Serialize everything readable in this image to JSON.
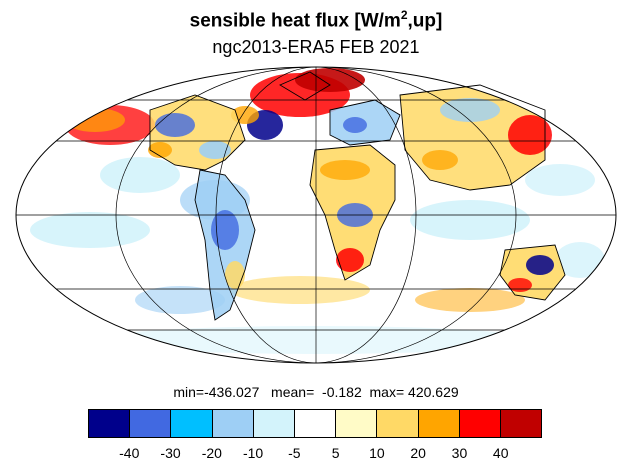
{
  "title": {
    "main": "sensible heat flux [W/m",
    "superscript": "2",
    "suffix": ",up]"
  },
  "subtitle": "ngc2013-ERA5  FEB 2021",
  "stats": {
    "min": "-436.027",
    "mean": "-0.182",
    "max": "420.629"
  },
  "projection": "mollweide",
  "graticule": {
    "meridian_step_deg": 60,
    "parallel_step_deg": 30
  },
  "colorbar": {
    "colors": [
      "#00008b",
      "#4169e1",
      "#00bfff",
      "#9ecff5",
      "#d3f3fb",
      "#ffffff",
      "#fffbc7",
      "#ffd966",
      "#ffa500",
      "#ff0000",
      "#c00000"
    ],
    "ticks": [
      "-40",
      "-30",
      "-20",
      "-10",
      "-5",
      "5",
      "10",
      "20",
      "30",
      "40"
    ]
  }
}
